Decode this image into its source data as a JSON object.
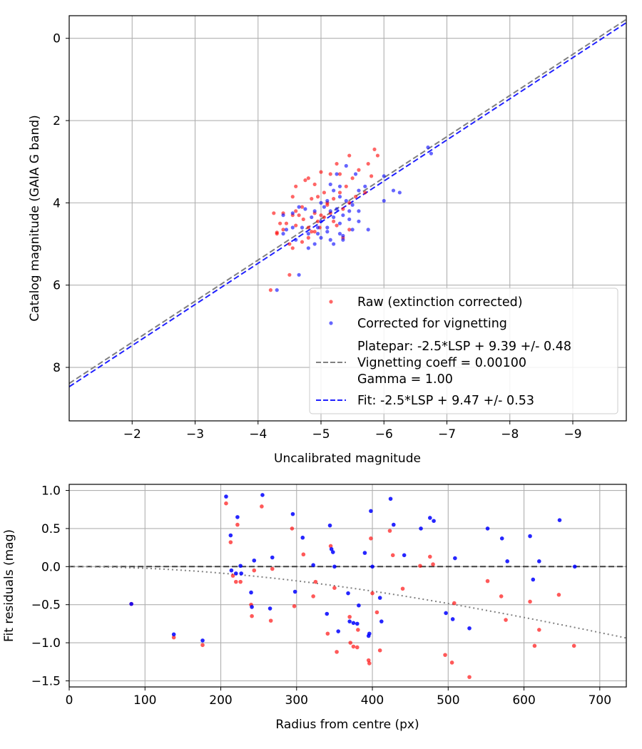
{
  "chart_data": [
    {
      "type": "scatter",
      "xlabel": "Uncalibrated magnitude",
      "ylabel": "Catalog magnitude (GAIA G band)",
      "xlim": [
        -1.0,
        -9.85
      ],
      "ylim": [
        9.3,
        -0.55
      ],
      "inverted_axes": true,
      "grid": true,
      "xticks": [
        -2,
        -3,
        -4,
        -5,
        -6,
        -7,
        -8,
        -9
      ],
      "xtick_labels": [
        "−2",
        "−3",
        "−4",
        "−5",
        "−6",
        "−7",
        "−8",
        "−9"
      ],
      "yticks": [
        0,
        2,
        4,
        6,
        8
      ],
      "ytick_labels": [
        "0",
        "2",
        "4",
        "6",
        "8"
      ],
      "legend_position": "lower-right",
      "legend": [
        "Raw (extinction corrected)",
        "Corrected for vignetting",
        "Platepar: -2.5*LSP + 9.39 +/- 0.48",
        "Vignetting coeff = 0.00100",
        "Gamma = 1.00",
        "Fit: -2.5*LSP + 9.47 +/- 0.53"
      ],
      "series": [
        {
          "name": "Raw (extinction corrected)",
          "color": "#ff0000",
          "points": [
            [
              -4.2,
              6.12
            ],
            [
              -4.5,
              5.75
            ],
            [
              -4.3,
              4.72
            ],
            [
              -4.35,
              4.5
            ],
            [
              -4.55,
              4.3
            ],
            [
              -4.6,
              4.2
            ],
            [
              -4.7,
              4.1
            ],
            [
              -4.72,
              4.4
            ],
            [
              -4.8,
              4.6
            ],
            [
              -4.9,
              4.7
            ],
            [
              -4.95,
              4.45
            ],
            [
              -5.0,
              4.3
            ],
            [
              -5.1,
              4.05
            ],
            [
              -5.2,
              3.9
            ],
            [
              -5.3,
              3.75
            ],
            [
              -5.4,
              3.6
            ],
            [
              -5.5,
              3.4
            ],
            [
              -5.6,
              3.2
            ],
            [
              -5.75,
              3.05
            ],
            [
              -5.85,
              2.7
            ],
            [
              -5.9,
              2.85
            ],
            [
              -5.45,
              2.85
            ],
            [
              -5.25,
              3.05
            ],
            [
              -5.0,
              3.25
            ],
            [
              -4.9,
              3.55
            ],
            [
              -4.8,
              3.4
            ],
            [
              -4.6,
              3.6
            ],
            [
              -4.55,
              3.85
            ],
            [
              -4.4,
              4.25
            ],
            [
              -4.3,
              4.75
            ],
            [
              -4.5,
              5.0
            ],
            [
              -4.55,
              5.1
            ],
            [
              -4.7,
              4.95
            ],
            [
              -4.8,
              4.85
            ],
            [
              -4.85,
              4.7
            ],
            [
              -4.98,
              4.6
            ],
            [
              -5.05,
              4.35
            ],
            [
              -5.15,
              4.25
            ],
            [
              -5.25,
              4.55
            ],
            [
              -5.35,
              4.15
            ],
            [
              -5.45,
              4.0
            ],
            [
              -5.55,
              3.85
            ],
            [
              -5.7,
              3.75
            ],
            [
              -5.15,
              3.3
            ],
            [
              -5.05,
              3.75
            ],
            [
              -4.95,
              3.85
            ],
            [
              -4.85,
              3.9
            ],
            [
              -4.65,
              4.3
            ],
            [
              -4.45,
              4.5
            ],
            [
              -4.25,
              4.25
            ],
            [
              -4.4,
              4.65
            ],
            [
              -4.75,
              3.45
            ],
            [
              -5.3,
              3.3
            ],
            [
              -5.8,
              3.35
            ],
            [
              -5.1,
              4.0
            ],
            [
              -5.45,
              4.65
            ],
            [
              -4.9,
              4.25
            ],
            [
              -5.2,
              4.45
            ],
            [
              -4.6,
              4.55
            ],
            [
              -5.35,
              4.85
            ]
          ]
        },
        {
          "name": "Corrected for vignetting",
          "color": "#0000ff",
          "points": [
            [
              -4.3,
              6.12
            ],
            [
              -4.65,
              5.75
            ],
            [
              -6.7,
              2.65
            ],
            [
              -6.75,
              2.8
            ],
            [
              -6.15,
              3.7
            ],
            [
              -6.25,
              3.75
            ],
            [
              -6.0,
              3.35
            ],
            [
              -6.0,
              3.95
            ],
            [
              -5.75,
              4.65
            ],
            [
              -5.6,
              4.2
            ],
            [
              -5.5,
              4.05
            ],
            [
              -5.4,
              3.95
            ],
            [
              -5.3,
              3.6
            ],
            [
              -5.25,
              3.3
            ],
            [
              -5.15,
              3.55
            ],
            [
              -5.2,
              4.35
            ],
            [
              -5.3,
              4.5
            ],
            [
              -5.35,
              4.8
            ],
            [
              -5.1,
              4.7
            ],
            [
              -5.0,
              4.45
            ],
            [
              -4.9,
              4.2
            ],
            [
              -4.8,
              4.75
            ],
            [
              -4.7,
              4.6
            ],
            [
              -4.6,
              4.9
            ],
            [
              -4.55,
              4.25
            ],
            [
              -4.4,
              4.3
            ],
            [
              -4.4,
              4.75
            ],
            [
              -4.55,
              4.6
            ],
            [
              -4.8,
              5.1
            ],
            [
              -4.9,
              5.0
            ],
            [
              -5.0,
              4.85
            ],
            [
              -5.15,
              4.9
            ],
            [
              -5.2,
              5.0
            ],
            [
              -5.3,
              4.75
            ],
            [
              -5.5,
              4.65
            ],
            [
              -5.45,
              4.4
            ],
            [
              -5.6,
              3.7
            ],
            [
              -5.7,
              3.6
            ],
            [
              -5.55,
              3.3
            ],
            [
              -5.4,
              3.1
            ],
            [
              -5.3,
              3.85
            ],
            [
              -5.25,
              4.15
            ],
            [
              -5.1,
              3.95
            ],
            [
              -5.05,
              4.1
            ],
            [
              -4.95,
              4.6
            ],
            [
              -4.85,
              4.35
            ],
            [
              -4.75,
              4.15
            ],
            [
              -4.65,
              4.1
            ],
            [
              -5.0,
              4.0
            ],
            [
              -5.35,
              4.3
            ],
            [
              -5.45,
              4.2
            ],
            [
              -4.45,
              4.65
            ],
            [
              -5.2,
              3.7
            ],
            [
              -5.6,
              4.45
            ],
            [
              -5.15,
              4.2
            ],
            [
              -4.95,
              4.75
            ],
            [
              -5.35,
              4.9
            ],
            [
              -5.1,
              4.6
            ]
          ]
        }
      ],
      "lines": [
        {
          "name": "Platepar",
          "color": "#808080",
          "style": "dashed",
          "intercept": 9.39,
          "slope": 1.0
        },
        {
          "name": "Fit",
          "color": "#2020ff",
          "style": "dashed",
          "intercept": 9.47,
          "slope": 1.0
        }
      ]
    },
    {
      "type": "scatter",
      "xlabel": "Radius from centre (px)",
      "ylabel": "Fit residuals (mag)",
      "xlim": [
        0,
        735
      ],
      "ylim": [
        -1.58,
        1.08
      ],
      "grid": true,
      "xticks": [
        0,
        100,
        200,
        300,
        400,
        500,
        600,
        700
      ],
      "xtick_labels": [
        "0",
        "100",
        "200",
        "300",
        "400",
        "500",
        "600",
        "700"
      ],
      "yticks": [
        1.0,
        0.5,
        0.0,
        -0.5,
        -1.0,
        -1.5
      ],
      "ytick_labels": [
        "1.0",
        "0.5",
        "0.0",
        "−0.5",
        "−1.0",
        "−1.5"
      ],
      "series": [
        {
          "name": "raw",
          "color": "#ff0000",
          "points": [
            [
              82,
              -0.49
            ],
            [
              138,
              -0.93
            ],
            [
              176,
              -1.03
            ],
            [
              207,
              0.83
            ],
            [
              213,
              0.32
            ],
            [
              216,
              -0.12
            ],
            [
              220,
              -0.2
            ],
            [
              222,
              0.55
            ],
            [
              226,
              -0.2
            ],
            [
              240,
              -0.5
            ],
            [
              241,
              -0.65
            ],
            [
              244,
              -0.05
            ],
            [
              254,
              0.79
            ],
            [
              266,
              -0.71
            ],
            [
              268,
              -0.03
            ],
            [
              294,
              0.5
            ],
            [
              297,
              -0.52
            ],
            [
              309,
              0.16
            ],
            [
              322,
              -0.39
            ],
            [
              325,
              -0.2
            ],
            [
              341,
              -0.88
            ],
            [
              345,
              0.27
            ],
            [
              350,
              -0.28
            ],
            [
              353,
              -1.12
            ],
            [
              370,
              -0.66
            ],
            [
              371,
              -1.0
            ],
            [
              375,
              -1.05
            ],
            [
              380,
              -1.06
            ],
            [
              381,
              -0.83
            ],
            [
              395,
              -1.23
            ],
            [
              396,
              -1.27
            ],
            [
              398,
              0.37
            ],
            [
              400,
              -0.35
            ],
            [
              406,
              -0.6
            ],
            [
              410,
              -1.1
            ],
            [
              423,
              0.47
            ],
            [
              427,
              0.15
            ],
            [
              440,
              -0.29
            ],
            [
              463,
              0.01
            ],
            [
              476,
              0.13
            ],
            [
              480,
              0.03
            ],
            [
              496,
              -1.16
            ],
            [
              505,
              -1.26
            ],
            [
              508,
              -0.48
            ],
            [
              528,
              -1.45
            ],
            [
              552,
              -0.19
            ],
            [
              570,
              -0.39
            ],
            [
              576,
              -0.7
            ],
            [
              608,
              -0.46
            ],
            [
              614,
              -1.04
            ],
            [
              620,
              -0.83
            ],
            [
              646,
              -0.37
            ],
            [
              666,
              -1.04
            ]
          ]
        },
        {
          "name": "corrected",
          "color": "#0000ff",
          "points": [
            [
              82,
              -0.49
            ],
            [
              138,
              -0.89
            ],
            [
              176,
              -0.97
            ],
            [
              207,
              0.92
            ],
            [
              213,
              0.41
            ],
            [
              214,
              -0.05
            ],
            [
              220,
              -0.09
            ],
            [
              222,
              0.65
            ],
            [
              226,
              0.01
            ],
            [
              227,
              -0.09
            ],
            [
              240,
              -0.34
            ],
            [
              241,
              -0.53
            ],
            [
              244,
              0.08
            ],
            [
              255,
              0.94
            ],
            [
              265,
              -0.55
            ],
            [
              268,
              0.12
            ],
            [
              295,
              0.69
            ],
            [
              298,
              -0.33
            ],
            [
              308,
              0.38
            ],
            [
              322,
              0.02
            ],
            [
              340,
              -0.62
            ],
            [
              344,
              0.54
            ],
            [
              346,
              0.23
            ],
            [
              348,
              0.19
            ],
            [
              350,
              0.0
            ],
            [
              355,
              -0.85
            ],
            [
              368,
              -0.35
            ],
            [
              370,
              -0.72
            ],
            [
              375,
              -0.74
            ],
            [
              380,
              -0.75
            ],
            [
              382,
              -0.51
            ],
            [
              390,
              0.18
            ],
            [
              395,
              -0.91
            ],
            [
              396,
              -0.88
            ],
            [
              398,
              0.73
            ],
            [
              400,
              0.0
            ],
            [
              410,
              -0.41
            ],
            [
              412,
              -0.72
            ],
            [
              424,
              0.89
            ],
            [
              428,
              0.55
            ],
            [
              442,
              0.15
            ],
            [
              464,
              0.5
            ],
            [
              476,
              0.64
            ],
            [
              481,
              0.6
            ],
            [
              497,
              -0.61
            ],
            [
              506,
              -0.69
            ],
            [
              509,
              0.11
            ],
            [
              528,
              -0.81
            ],
            [
              552,
              0.5
            ],
            [
              571,
              0.37
            ],
            [
              578,
              0.07
            ],
            [
              608,
              0.4
            ],
            [
              612,
              -0.17
            ],
            [
              620,
              0.07
            ],
            [
              647,
              0.61
            ],
            [
              667,
              0.0
            ]
          ]
        }
      ],
      "lines": [
        {
          "name": "zero",
          "color": "#404040",
          "style": "dashed"
        },
        {
          "name": "vignetting",
          "color": "#808080",
          "style": "dotted",
          "coeff": 0.001
        }
      ]
    }
  ]
}
